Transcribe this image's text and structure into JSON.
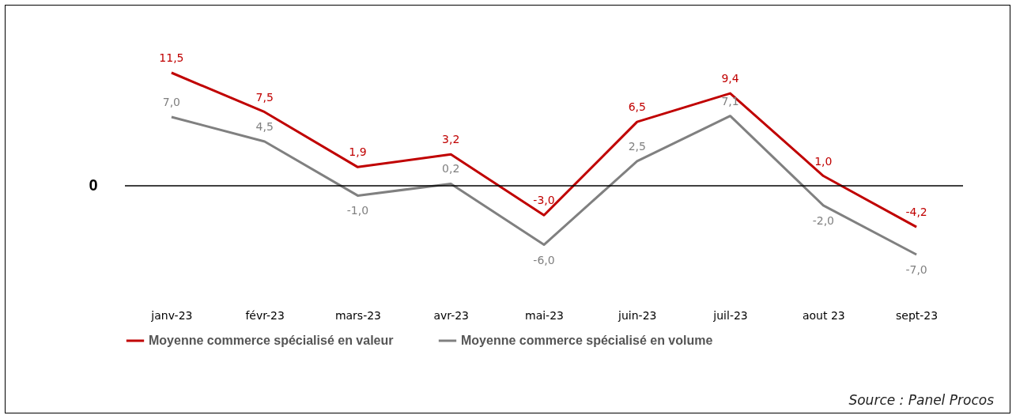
{
  "chart_data": {
    "type": "line",
    "categories": [
      "janv-23",
      "févr-23",
      "mars-23",
      "avr-23",
      "mai-23",
      "juin-23",
      "juil-23",
      "aout 23",
      "sept-23"
    ],
    "series": [
      {
        "name": "Moyenne commerce spécialisé en valeur",
        "color": "#c00000",
        "values": [
          11.5,
          7.5,
          1.9,
          3.2,
          -3.0,
          6.5,
          9.4,
          1.0,
          -4.2
        ],
        "value_labels": [
          "11,5",
          "7,5",
          "1,9",
          "3,2",
          "-3,0",
          "6,5",
          "9,4",
          "1,0",
          "-4,2"
        ]
      },
      {
        "name": "Moyenne commerce spécialisé en volume",
        "color": "#808080",
        "values": [
          7.0,
          4.5,
          -1.0,
          0.2,
          -6.0,
          2.5,
          7.1,
          -2.0,
          -7.0
        ],
        "value_labels": [
          "7,0",
          "4,5",
          "-1,0",
          "0,2",
          "-6,0",
          "2,5",
          "7,1",
          "-2,0",
          "-7,0"
        ]
      }
    ],
    "ref_lines": [
      {
        "axis": "y",
        "value": 0,
        "label": "0",
        "color": "#000000"
      }
    ],
    "legend": "bottom",
    "grid": false,
    "marker": "none",
    "line_style": "solid",
    "annotations": [
      "Source : Panel Procos"
    ]
  }
}
